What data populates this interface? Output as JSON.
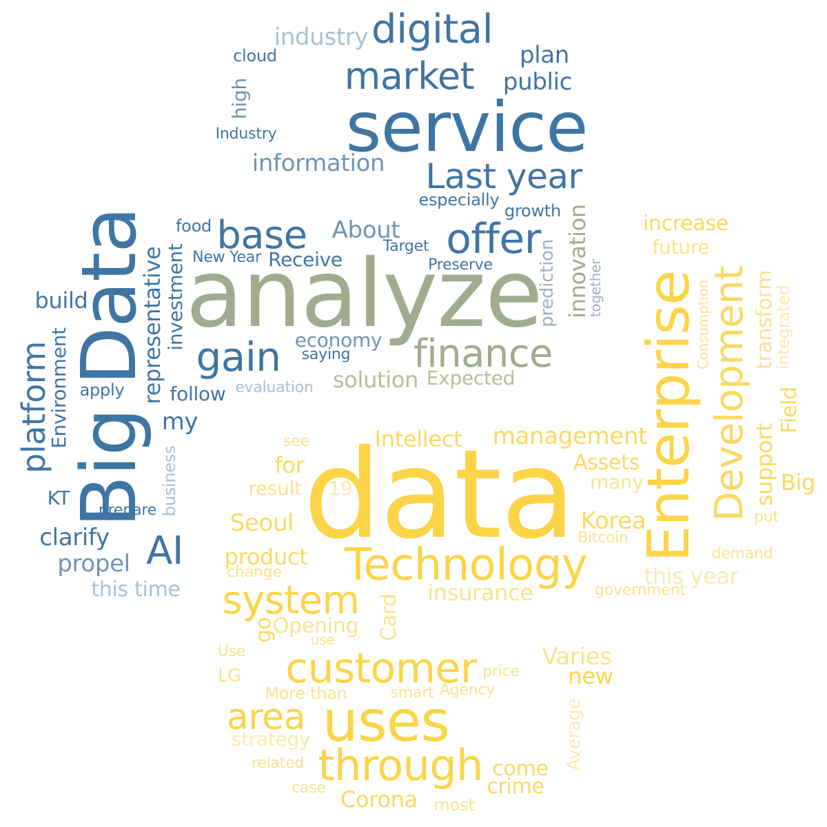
{
  "words": {
    "service": "service",
    "digital": "digital",
    "market": "market",
    "industry_lower": "industry",
    "cloud": "cloud",
    "high": "high",
    "industry_cap": "Industry",
    "plan": "plan",
    "public": "public",
    "information": "information",
    "last_year": "Last year",
    "especially": "especially",
    "growth": "growth",
    "big_data": "Big Data",
    "analyze": "analyze",
    "base": "base",
    "offer": "offer",
    "about": "About",
    "food": "food",
    "new_year": "New Year",
    "receive": "Receive",
    "target": "Target",
    "preserve": "Preserve",
    "representative": "representative",
    "investment": "investment",
    "build": "build",
    "platform": "platform",
    "environment": "Environment",
    "gain": "gain",
    "economy": "economy",
    "saying": "saying",
    "finance": "finance",
    "solution": "solution",
    "expected": "Expected",
    "innovation": "innovation",
    "prediction": "prediction",
    "together": "together",
    "apply": "apply",
    "follow": "follow",
    "evaluation": "evaluation",
    "my": "my",
    "business": "business",
    "kt": "KT",
    "prepare": "prepare",
    "clarify": "clarify",
    "ai": "AI",
    "propel": "propel",
    "this_time": "this time",
    "increase": "increase",
    "future": "future",
    "enterprise": "Enterprise",
    "development": "Development",
    "consumption": "Consumption",
    "transform": "transform",
    "integrated": "integrated",
    "field": "Field",
    "data": "data",
    "intellect": "Intellect",
    "management": "management",
    "see": "see",
    "for": "for",
    "assets": "Assets",
    "many": "many",
    "support": "support",
    "big": "Big",
    "result": "result",
    "nineteen": "19",
    "seoul": "Seoul",
    "korea": "Korea",
    "put": "put",
    "bitcoin": "Bitcoin",
    "technology": "Technology",
    "product": "product",
    "change": "change",
    "demand": "demand",
    "this_year": "this year",
    "system": "system",
    "insurance": "insurance",
    "government": "government",
    "go": "go",
    "opening": "Opening",
    "card": "Card",
    "use_lower": "use",
    "use_cap": "Use",
    "customer": "customer",
    "varies": "Varies",
    "lg": "LG",
    "price": "price",
    "new": "new",
    "more_than": "More than",
    "smart": "smart",
    "agency": "Agency",
    "area": "area",
    "uses": "uses",
    "average": "Average",
    "strategy": "strategy",
    "related": "related",
    "through": "through",
    "come": "come",
    "crime": "crime",
    "case": "case",
    "corona": "Corona",
    "most": "most"
  },
  "colors": {
    "strong_blue": "#3f75a3",
    "medium_blue": "#6d95b6",
    "light_blue": "#a9c0d6",
    "sage": "#a1ab8d",
    "pale_sage": "#b9bc9a",
    "strong_yellow": "#fdd447",
    "light_yellow": "#fbe28f",
    "background": "#ffffff"
  }
}
